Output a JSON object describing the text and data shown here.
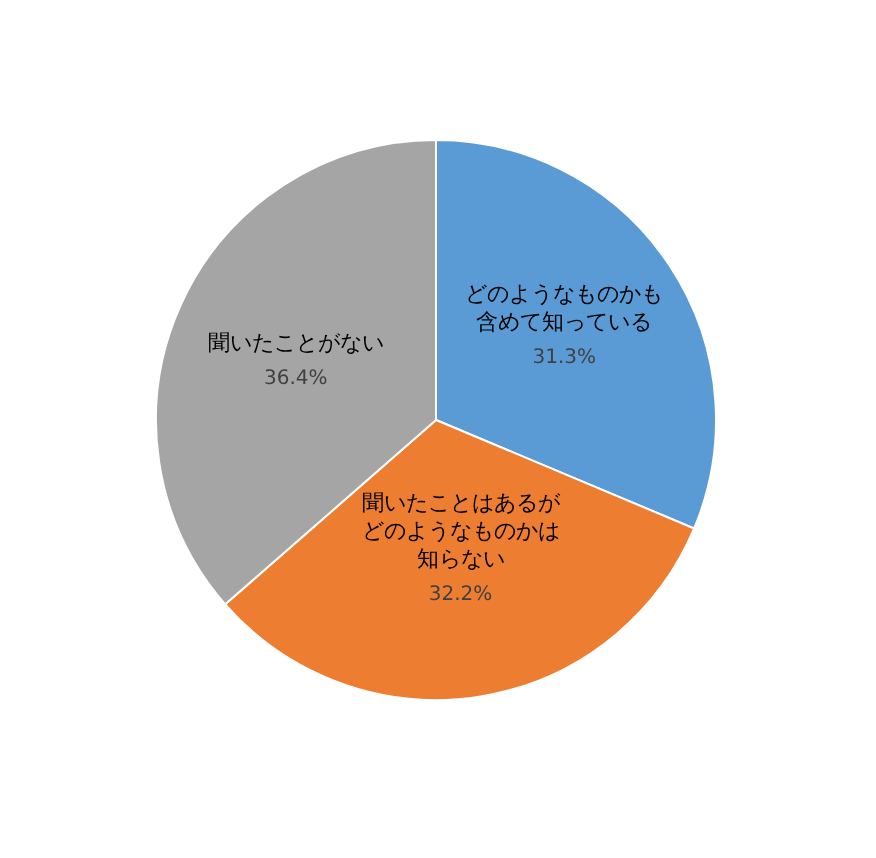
{
  "chart_data": {
    "type": "pie",
    "categories": [
      "どのようなものかも含めて知っている",
      "聞いたことはあるがどのようなものかは知らない",
      "聞いたことがない"
    ],
    "values": [
      31.3,
      32.2,
      36.4
    ],
    "colors": [
      "#5b9bd5",
      "#ed7d31",
      "#a5a5a5"
    ],
    "value_labels": [
      "31.3%",
      "32.2%",
      "36.4%"
    ],
    "legend": false
  }
}
